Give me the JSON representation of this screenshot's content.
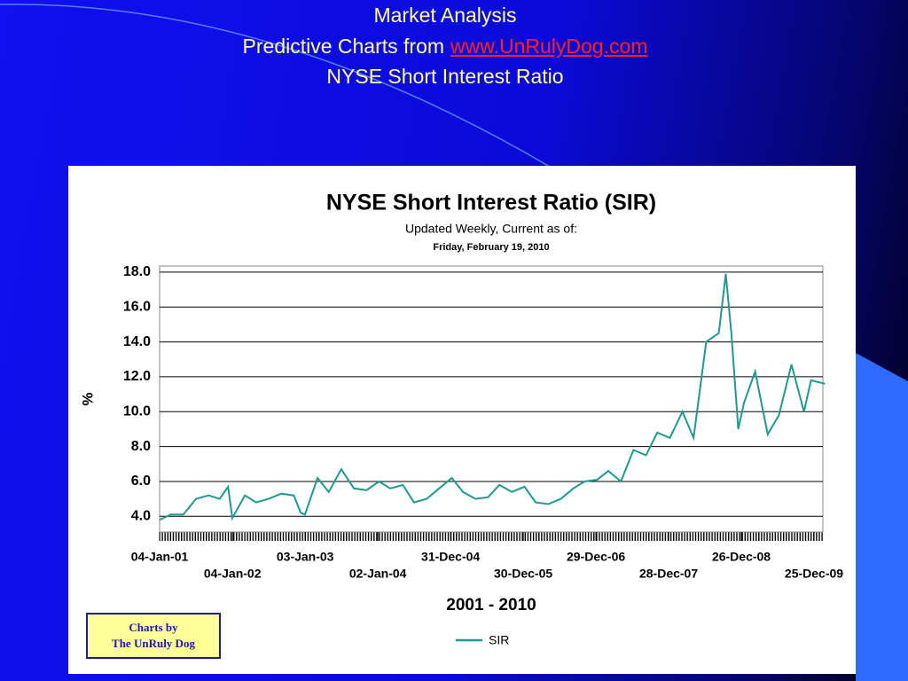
{
  "slide": {
    "title": "Market Analysis",
    "subtitle_prefix": "Predictive Charts from",
    "link": "www.UnRulyDog.com",
    "subtitle2": "NYSE Short Interest Ratio"
  },
  "chart_data": {
    "type": "line",
    "title": "NYSE Short Interest Ratio (SIR)",
    "subtitle": "Updated Weekly, Current as of:",
    "date_note": "Friday, February 19, 2010",
    "ylabel": "%",
    "xlabel": "2001 - 2010",
    "badge": [
      "Charts by",
      "The UnRuly Dog"
    ],
    "x": [
      "04-Jan-01",
      "01-Mar-01",
      "03-May-01",
      "05-Jul-01",
      "06-Sep-01",
      "01-Nov-01",
      "13-Dec-01",
      "03-Jan-02",
      "07-Mar-02",
      "02-May-02",
      "04-Jul-02",
      "05-Sep-02",
      "07-Nov-02",
      "12-Dec-02",
      "02-Jan-03",
      "06-Mar-03",
      "01-May-03",
      "03-Jul-03",
      "04-Sep-03",
      "06-Nov-03",
      "08-Jan-04",
      "04-Mar-04",
      "06-May-04",
      "01-Jul-04",
      "02-Sep-04",
      "04-Nov-04",
      "06-Jan-05",
      "03-Mar-05",
      "05-May-05",
      "07-Jul-05",
      "01-Sep-05",
      "03-Nov-05",
      "05-Jan-06",
      "02-Mar-06",
      "04-May-06",
      "06-Jul-06",
      "07-Sep-06",
      "02-Nov-06",
      "04-Jan-07",
      "01-Mar-07",
      "03-May-07",
      "05-Jul-07",
      "06-Sep-07",
      "01-Nov-07",
      "03-Jan-08",
      "06-Mar-08",
      "01-May-08",
      "03-Jul-08",
      "04-Sep-08",
      "09-Oct-08",
      "06-Nov-08",
      "11-Dec-08",
      "08-Jan-09",
      "05-Mar-09",
      "07-May-09",
      "02-Jul-09",
      "03-Sep-09",
      "05-Nov-09",
      "10-Dec-09",
      "18-Feb-10"
    ],
    "series": [
      {
        "name": "SIR",
        "color": "#1f9a8c",
        "values": [
          3.8,
          4.1,
          4.1,
          5.0,
          5.2,
          5.0,
          5.7,
          3.9,
          5.2,
          4.8,
          5.0,
          5.3,
          5.2,
          4.2,
          4.1,
          6.2,
          5.4,
          6.7,
          5.6,
          5.5,
          6.0,
          5.6,
          5.8,
          4.8,
          5.0,
          5.6,
          6.2,
          5.4,
          5.0,
          5.1,
          5.8,
          5.4,
          5.7,
          4.8,
          4.7,
          5.0,
          5.6,
          6.0,
          6.1,
          6.6,
          6.0,
          7.8,
          7.5,
          8.8,
          8.5,
          10.0,
          8.5,
          14.0,
          14.5,
          17.9,
          14.5,
          9.0,
          10.5,
          12.3,
          8.7,
          9.8,
          12.7,
          10.0,
          11.8,
          11.6
        ]
      }
    ],
    "xticks": [
      "04-Jan-01",
      "04-Jan-02",
      "03-Jan-03",
      "02-Jan-04",
      "31-Dec-04",
      "30-Dec-05",
      "29-Dec-06",
      "28-Dec-07",
      "26-Dec-08",
      "25-Dec-09"
    ],
    "xlim": [
      "04-Jan-01",
      "19-Feb-10"
    ],
    "ylim": [
      3.1,
      18.35
    ],
    "yticks": [
      {
        "value": 4,
        "label": "4.0"
      },
      {
        "value": 6,
        "label": "6.0"
      },
      {
        "value": 8,
        "label": "8.0"
      },
      {
        "value": 10,
        "label": "10.0"
      },
      {
        "value": 12,
        "label": "12.0"
      },
      {
        "value": 14,
        "label": "14.0"
      },
      {
        "value": 16,
        "label": "16.0"
      },
      {
        "value": 18,
        "label": "18.0"
      }
    ],
    "grid": true
  }
}
